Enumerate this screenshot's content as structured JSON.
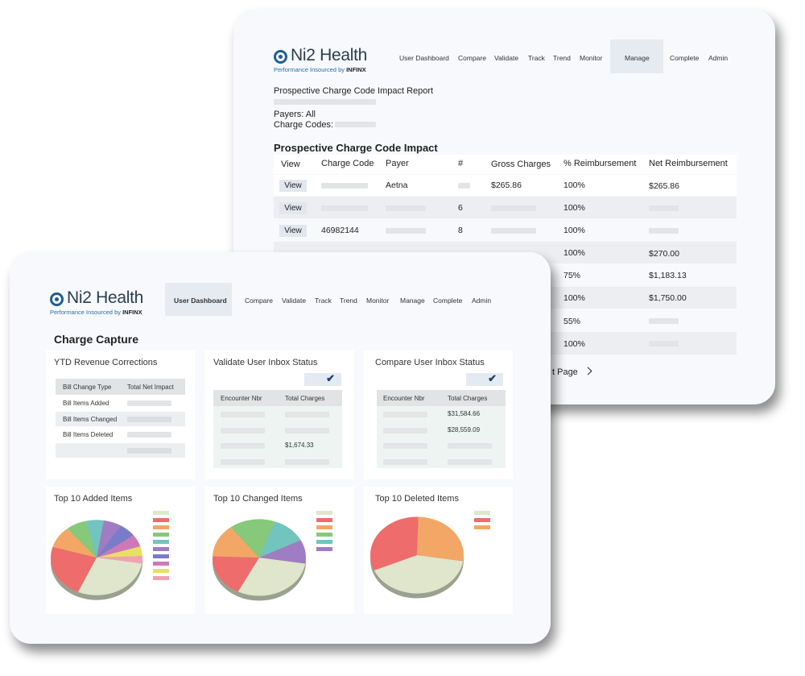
{
  "back": {
    "logo": {
      "name": "Ni2 Health",
      "tagline": "Performance Insourced",
      "by": "by",
      "brand": "INFINX"
    },
    "nav": [
      "User Dashboard",
      "Compare",
      "Validate",
      "Track",
      "Trend",
      "Monitor",
      "Manage",
      "Complete",
      "Admin"
    ],
    "nav_active": "Manage",
    "report_title": "Prospective Charge Code Impact Report",
    "payers_label": "Payers: All",
    "charge_codes_label": "Charge Codes:",
    "section_title": "Prospective Charge Code Impact",
    "table": {
      "columns": [
        "View",
        "Charge Code",
        "Payer",
        "#",
        "Gross Charges",
        "% Reimbursement",
        "Net Reimbursement"
      ],
      "view_label": "View",
      "rows": [
        {
          "code": "",
          "payer": "Aetna",
          "count": "",
          "gross": "$265.86",
          "pct": "100%",
          "net": "$265.86"
        },
        {
          "code": "",
          "payer": "",
          "count": "6",
          "gross": "",
          "pct": "100%",
          "net": ""
        },
        {
          "code": "46982144",
          "payer": "",
          "count": "8",
          "gross": "",
          "pct": "100%",
          "net": ""
        },
        {
          "code": "",
          "payer": "",
          "count": "",
          "gross": "",
          "pct": "100%",
          "net": "$270.00"
        },
        {
          "code": "",
          "payer": "",
          "count": "",
          "gross": "",
          "pct": "75%",
          "net": "$1,183.13"
        },
        {
          "code": "",
          "payer": "",
          "count": "",
          "gross": "",
          "pct": "100%",
          "net": "$1,750.00"
        },
        {
          "code": "",
          "payer": "",
          "count": "",
          "gross": "",
          "pct": "55%",
          "net": ""
        },
        {
          "code": "",
          "payer": "",
          "count": "",
          "gross": "",
          "pct": "100%",
          "net": ""
        }
      ]
    },
    "next_page": "t Page",
    "next_icon": "chevron-right"
  },
  "front": {
    "logo": {
      "name": "Ni2 Health",
      "tagline": "Performance Insourced",
      "by": "by",
      "brand": "INFINX"
    },
    "nav": [
      "User Dashboard",
      "Compare",
      "Validate",
      "Track",
      "Trend",
      "Monitor",
      "Manage",
      "Complete",
      "Admin"
    ],
    "nav_active": "User Dashboard",
    "page_title": "Charge Capture",
    "ytd": {
      "title": "YTD Revenue Corrections",
      "headers": [
        "Bill Change Type",
        "Total Net Impact"
      ],
      "rows": [
        "Bill Items Added",
        "Bill Items Changed",
        "Bill Items Deleted"
      ]
    },
    "validate": {
      "title": "Validate User Inbox Status",
      "headers": [
        "Encounter Nbr",
        "Total Charges"
      ],
      "values": [
        "",
        "",
        "$1,674.33",
        ""
      ]
    },
    "compare": {
      "title": "Compare User Inbox Status",
      "headers": [
        "Encounter Nbr",
        "Total Charges"
      ],
      "values": [
        "$31,584.66",
        "$28,559.09",
        "",
        ""
      ]
    },
    "charts": [
      {
        "title": "Top 10 Added Items"
      },
      {
        "title": "Top 10 Changed Items"
      },
      {
        "title": "Top 10 Deleted Items"
      }
    ]
  },
  "colors": {
    "accent": "#1f5f93",
    "active_nav": "#e6ebf2",
    "row_shade": "#eceef1"
  },
  "chart_data": [
    {
      "type": "pie",
      "title": "Top 10 Added Items",
      "values": [
        28,
        22,
        9,
        7,
        6,
        6,
        6,
        5,
        4,
        3
      ],
      "colors": [
        "#dfe6cc",
        "#ef6c6c",
        "#f2a766",
        "#86c97a",
        "#72c4be",
        "#a07cc4",
        "#7a7cc9",
        "#cf78b8",
        "#e8e062",
        "#f2a0b5"
      ]
    },
    {
      "type": "pie",
      "title": "Top 10 Changed Items",
      "values": [
        30,
        18,
        14,
        16,
        12,
        10
      ],
      "colors": [
        "#dfe6cc",
        "#ef6c6c",
        "#f2a766",
        "#86c97a",
        "#72c4be",
        "#a07cc4"
      ]
    },
    {
      "type": "pie",
      "title": "Top 10 Deleted Items",
      "values": [
        41,
        32,
        27
      ],
      "colors": [
        "#dfe6cc",
        "#ef6c6c",
        "#f2a766"
      ]
    }
  ]
}
